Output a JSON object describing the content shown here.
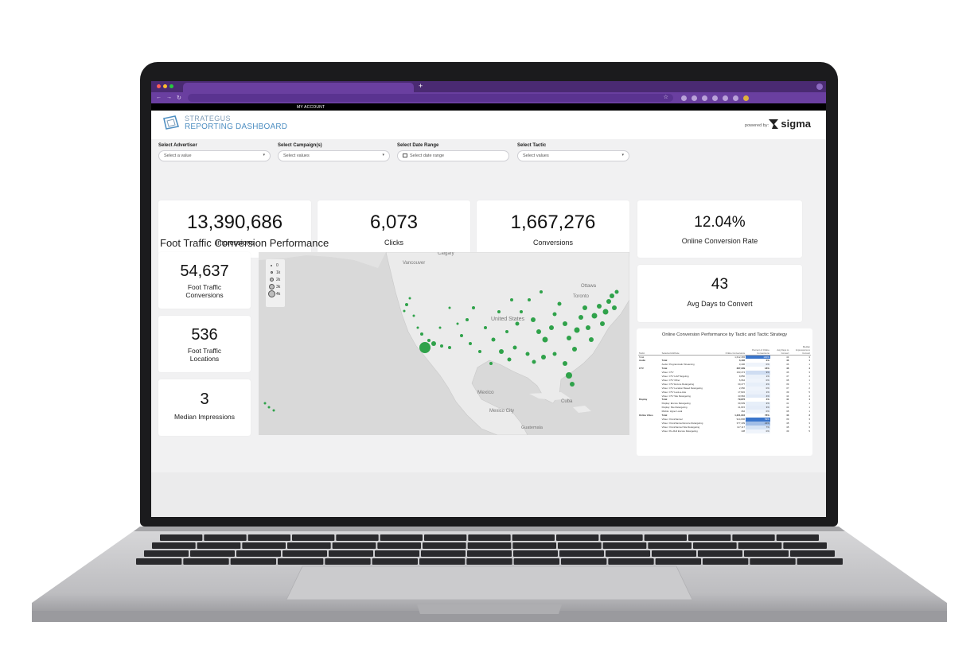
{
  "browser": {
    "account_label": "MY ACCOUNT",
    "new_tab_label": "+"
  },
  "header": {
    "brand_line1": "STRATEGUS",
    "brand_line2": "REPORTING DASHBOARD",
    "powered_by": "powered by:",
    "sigma": "sigma"
  },
  "filters": [
    {
      "label": "Select Advertiser",
      "placeholder": "Select a value"
    },
    {
      "label": "Select Campaign(s)",
      "placeholder": "Select values"
    },
    {
      "label": "Select Date Range",
      "placeholder": "Select date range"
    },
    {
      "label": "Select Tactic",
      "placeholder": "Select values"
    }
  ],
  "kpis": {
    "impressions": {
      "value": "13,390,686",
      "label": "Impressions"
    },
    "clicks": {
      "value": "6,073",
      "label": "Clicks"
    },
    "conversions": {
      "value": "1,667,276",
      "label": "Conversions"
    },
    "ocr": {
      "value": "12.04%",
      "label": "Online Conversion Rate"
    },
    "avg_days": {
      "value": "43",
      "label": "Avg Days to Convert"
    }
  },
  "foot_traffic": {
    "title": "Foot Traffic Conversion Performance",
    "conversions": {
      "value": "54,637",
      "label_line1": "Foot Traffic",
      "label_line2": "Conversions"
    },
    "locations": {
      "value": "536",
      "label_line1": "Foot Traffic",
      "label_line2": "Locations"
    },
    "median": {
      "value": "3",
      "label": "Median Impressions"
    }
  },
  "map": {
    "legend": [
      "0",
      "1k",
      "2k",
      "3k",
      "4k"
    ],
    "labels": [
      "Vancouver",
      "Calgary",
      "Ottawa",
      "Toronto",
      "United States",
      "Mexico",
      "Mexico City",
      "Cuba",
      "Guatemala"
    ],
    "marker_color": "#2fa24a"
  },
  "table": {
    "title": "Online Conversion Performance by Tactic and Tactic Strategy",
    "headers": [
      "Tactic",
      "Selected Attribute",
      "Online Conversions",
      "Percent of Online Conversions",
      "Avg Days to Convert",
      "Median Impressions to Convert"
    ],
    "rows": [
      [
        "Total",
        "",
        "1,612,365",
        "100%",
        "43",
        "3"
      ],
      [
        "Audio",
        "Total",
        "3,406",
        "0%",
        "46",
        "1"
      ],
      [
        "",
        "Audio: Programmatic Streaming",
        "3,406",
        "0%",
        "46",
        "1"
      ],
      [
        "CTV",
        "Total",
        "387,299",
        "18%",
        "46",
        "4"
      ],
      [
        "",
        "Video: CTV",
        "193,474",
        "9%",
        "46",
        "3"
      ],
      [
        "",
        "Video: CTV LLM Targeting",
        "9,850",
        "1%",
        "47",
        "4"
      ],
      [
        "",
        "Video: CTV Other",
        "6,964",
        "0%",
        "38",
        "1"
      ],
      [
        "",
        "Video: CTV Encore Retargeting",
        "30,477",
        "2%",
        "39",
        "7"
      ],
      [
        "",
        "Video: CTV Location Based Retargeting",
        "2,050",
        "0%",
        "37",
        "2"
      ],
      [
        "",
        "Video: CTV Look-a-Like",
        "17,822",
        "1%",
        "49",
        "5"
      ],
      [
        "",
        "Video: CTV Site Retargeting",
        "43,984",
        "4%",
        "44",
        "4"
      ],
      [
        "Display",
        "Total",
        "79,876",
        "4%",
        "41",
        "1"
      ],
      [
        "",
        "Display: Encore Retargeting",
        "30,609",
        "2%",
        "41",
        "1"
      ],
      [
        "",
        "Display: Site Retargeting",
        "41,815",
        "3%",
        "42",
        "1"
      ],
      [
        "",
        "Mobile: Hyper Local",
        "462",
        "0%",
        "38",
        "1"
      ],
      [
        "Online Video",
        "Total",
        "1,321,904",
        "78%",
        "43",
        "3"
      ],
      [
        "",
        "Video: Omnichannel",
        "914,806",
        "53%",
        "39",
        "3"
      ],
      [
        "",
        "Video: Omnichannel Encore Retargeting",
        "377,409",
        "22%",
        "48",
        "3"
      ],
      [
        "",
        "Video: Omnichannel Site Retargeting",
        "117,117",
        "7%",
        "48",
        "3"
      ],
      [
        "",
        "Video: Pre-Roll Encore Retargeting",
        "138",
        "0%",
        "49",
        "5"
      ]
    ]
  }
}
